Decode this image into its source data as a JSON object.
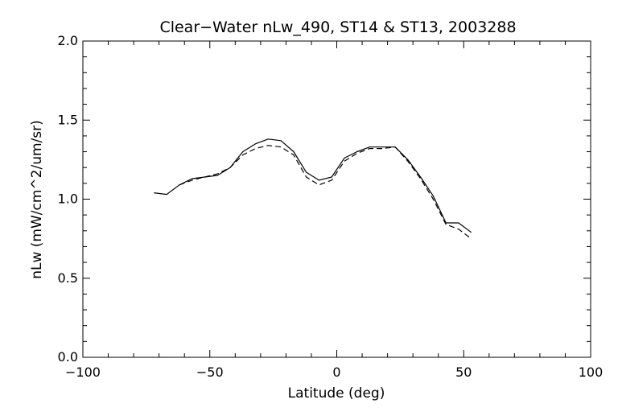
{
  "chart_data": {
    "type": "line",
    "title": "Clear−Water nLw_490, ST14 & ST13, 2003288",
    "xlabel": "Latitude (deg)",
    "ylabel": "nLw (mW/cm^2/um/sr)",
    "xlim": [
      -100,
      100
    ],
    "ylim": [
      0.0,
      2.0
    ],
    "x_ticks": [
      -100,
      -50,
      0,
      50,
      100
    ],
    "x_tick_labels": [
      "−100",
      "−50",
      "0",
      "50",
      "100"
    ],
    "y_ticks": [
      0.0,
      0.5,
      1.0,
      1.5,
      2.0
    ],
    "y_tick_labels": [
      "0.0",
      "0.5",
      "1.0",
      "1.5",
      "2.0"
    ],
    "grid": false,
    "legend": false,
    "series": [
      {
        "style": "solid",
        "color": "#000000",
        "x": [
          -72,
          -67,
          -62,
          -57,
          -52,
          -47,
          -42,
          -37,
          -32,
          -27,
          -22,
          -17,
          -12,
          -7,
          -2,
          3,
          8,
          13,
          18,
          23,
          28,
          33,
          38,
          43,
          48,
          53
        ],
        "y": [
          1.04,
          1.03,
          1.09,
          1.13,
          1.14,
          1.15,
          1.2,
          1.3,
          1.35,
          1.38,
          1.37,
          1.3,
          1.17,
          1.12,
          1.14,
          1.26,
          1.3,
          1.33,
          1.33,
          1.33,
          1.25,
          1.14,
          1.02,
          0.85,
          0.85,
          0.79
        ]
      },
      {
        "style": "dashed",
        "color": "#000000",
        "x": [
          -62,
          -57,
          -52,
          -47,
          -42,
          -37,
          -32,
          -27,
          -22,
          -17,
          -12,
          -7,
          -2,
          3,
          8,
          13,
          18,
          23,
          28,
          33,
          38,
          43,
          48,
          53
        ],
        "y": [
          1.09,
          1.12,
          1.14,
          1.16,
          1.2,
          1.28,
          1.32,
          1.34,
          1.33,
          1.28,
          1.14,
          1.09,
          1.12,
          1.24,
          1.29,
          1.32,
          1.32,
          1.33,
          1.24,
          1.13,
          1.0,
          0.84,
          0.81,
          0.75
        ]
      }
    ]
  }
}
